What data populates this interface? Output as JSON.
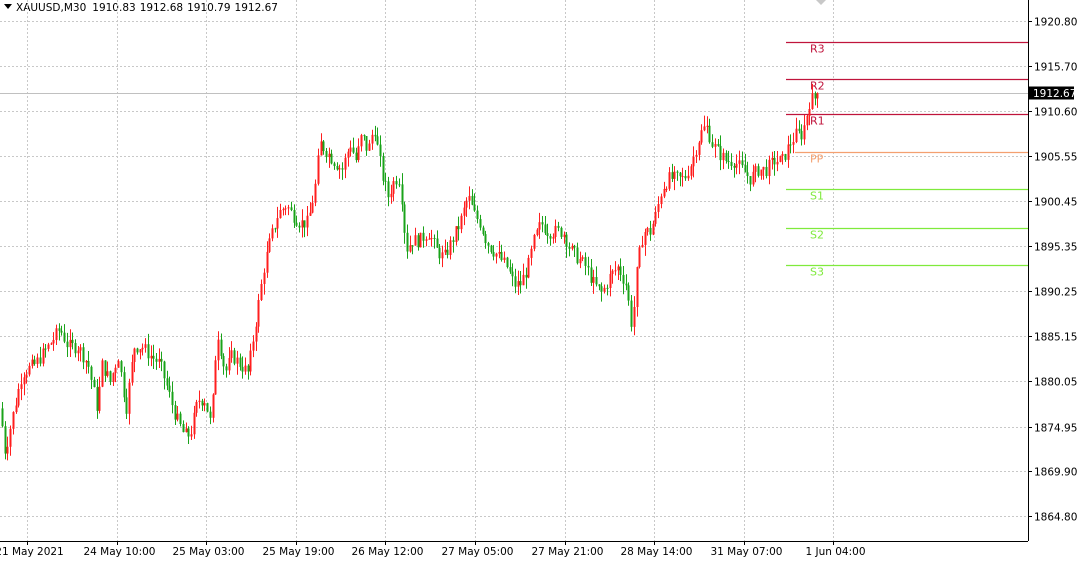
{
  "header": {
    "symbol": "XAUUSD,M30",
    "open": "1910.83",
    "high": "1912.68",
    "low": "1910.79",
    "close": "1912.67"
  },
  "colors": {
    "bull": "#ff1f1f",
    "bear": "#1aa31a",
    "grid": "#c8c8c8",
    "resistance": "#c0143c",
    "pivot": "#f4a070",
    "support": "#7fea3c",
    "price_tag_bg": "#000000",
    "price_line": "#c0c0c0"
  },
  "chart_data": {
    "type": "candlestick",
    "symbol": "XAUUSD",
    "timeframe": "M30",
    "current_price": 1912.67,
    "current_price_label": "1912.67",
    "ylim": [
      1862.0,
      1923.2
    ],
    "y_ticks": [
      "1920.80",
      "1915.70",
      "1910.60",
      "1905.55",
      "1900.45",
      "1895.35",
      "1890.25",
      "1885.15",
      "1880.05",
      "1874.95",
      "1869.90",
      "1864.80"
    ],
    "x_ticks": [
      "21 May 2021",
      "24 May 10:00",
      "25 May 03:00",
      "25 May 19:00",
      "26 May 12:00",
      "27 May 05:00",
      "27 May 21:00",
      "28 May 14:00",
      "31 May 07:00",
      "1 Jun 04:00"
    ],
    "pivot_levels": [
      {
        "label": "R3",
        "value": 1918.5,
        "kind": "resistance"
      },
      {
        "label": "R2",
        "value": 1914.3,
        "kind": "resistance"
      },
      {
        "label": "R1",
        "value": 1910.3,
        "kind": "resistance"
      },
      {
        "label": "PP",
        "value": 1906.0,
        "kind": "pivot"
      },
      {
        "label": "S1",
        "value": 1901.8,
        "kind": "support"
      },
      {
        "label": "S2",
        "value": 1897.4,
        "kind": "support"
      },
      {
        "label": "S3",
        "value": 1893.2,
        "kind": "support"
      }
    ],
    "path": [
      [
        0,
        1877.0
      ],
      [
        5,
        1872.0
      ],
      [
        14,
        1877.0
      ],
      [
        22,
        1881.0
      ],
      [
        35,
        1882.0
      ],
      [
        48,
        1884.0
      ],
      [
        60,
        1886.0
      ],
      [
        68,
        1884.0
      ],
      [
        78,
        1884.0
      ],
      [
        88,
        1882.0
      ],
      [
        97,
        1877.0
      ],
      [
        102,
        1882.0
      ],
      [
        110,
        1880.0
      ],
      [
        118,
        1883.0
      ],
      [
        126,
        1877.0
      ],
      [
        134,
        1884.0
      ],
      [
        142,
        1884.0
      ],
      [
        150,
        1883.0
      ],
      [
        160,
        1882.0
      ],
      [
        168,
        1879.0
      ],
      [
        176,
        1876.0
      ],
      [
        184,
        1874.0
      ],
      [
        190,
        1874.0
      ],
      [
        198,
        1878.0
      ],
      [
        205,
        1878.0
      ],
      [
        211,
        1875.0
      ],
      [
        217,
        1886.0
      ],
      [
        225,
        1881.0
      ],
      [
        232,
        1883.0
      ],
      [
        240,
        1882.0
      ],
      [
        248,
        1881.0
      ],
      [
        256,
        1887.0
      ],
      [
        264,
        1893.0
      ],
      [
        270,
        1896.0
      ],
      [
        278,
        1899.0
      ],
      [
        286,
        1900.0
      ],
      [
        292,
        1899.0
      ],
      [
        300,
        1898.0
      ],
      [
        308,
        1898.0
      ],
      [
        315,
        1902.0
      ],
      [
        320,
        1907.0
      ],
      [
        327,
        1906.0
      ],
      [
        334,
        1905.0
      ],
      [
        342,
        1904.0
      ],
      [
        350,
        1907.0
      ],
      [
        356,
        1905.0
      ],
      [
        362,
        1908.0
      ],
      [
        368,
        1906.0
      ],
      [
        374,
        1909.0
      ],
      [
        378,
        1906.0
      ],
      [
        383,
        1903.0
      ],
      [
        388,
        1901.0
      ],
      [
        395,
        1903.0
      ],
      [
        400,
        1903.0
      ],
      [
        406,
        1895.0
      ],
      [
        412,
        1896.0
      ],
      [
        420,
        1896.0
      ],
      [
        428,
        1897.0
      ],
      [
        436,
        1895.0
      ],
      [
        444,
        1894.0
      ],
      [
        452,
        1896.0
      ],
      [
        460,
        1898.0
      ],
      [
        468,
        1901.0
      ],
      [
        474,
        1899.0
      ],
      [
        480,
        1898.0
      ],
      [
        486,
        1896.0
      ],
      [
        492,
        1895.0
      ],
      [
        500,
        1894.0
      ],
      [
        507,
        1893.0
      ],
      [
        514,
        1891.0
      ],
      [
        520,
        1891.0
      ],
      [
        528,
        1893.0
      ],
      [
        534,
        1896.0
      ],
      [
        541,
        1898.0
      ],
      [
        548,
        1897.0
      ],
      [
        556,
        1897.0
      ],
      [
        563,
        1897.0
      ],
      [
        570,
        1895.0
      ],
      [
        578,
        1894.0
      ],
      [
        586,
        1893.0
      ],
      [
        594,
        1891.0
      ],
      [
        602,
        1890.0
      ],
      [
        610,
        1892.0
      ],
      [
        618,
        1893.0
      ],
      [
        626,
        1891.0
      ],
      [
        632,
        1886.0
      ],
      [
        637,
        1893.0
      ],
      [
        643,
        1897.0
      ],
      [
        650,
        1897.0
      ],
      [
        656,
        1899.0
      ],
      [
        662,
        1902.0
      ],
      [
        669,
        1903.0
      ],
      [
        676,
        1903.0
      ],
      [
        684,
        1903.0
      ],
      [
        692,
        1905.0
      ],
      [
        700,
        1908.0
      ],
      [
        706,
        1909.0
      ],
      [
        712,
        1907.0
      ],
      [
        718,
        1906.0
      ],
      [
        726,
        1905.0
      ],
      [
        734,
        1905.0
      ],
      [
        742,
        1904.0
      ],
      [
        750,
        1903.0
      ],
      [
        758,
        1904.0
      ],
      [
        766,
        1904.0
      ],
      [
        774,
        1905.0
      ],
      [
        782,
        1905.0
      ],
      [
        790,
        1907.0
      ],
      [
        796,
        1908.0
      ],
      [
        802,
        1908.0
      ],
      [
        806,
        1910.0
      ],
      [
        810,
        1912.0
      ],
      [
        814,
        1912.0
      ],
      [
        818,
        1912.67
      ]
    ]
  }
}
